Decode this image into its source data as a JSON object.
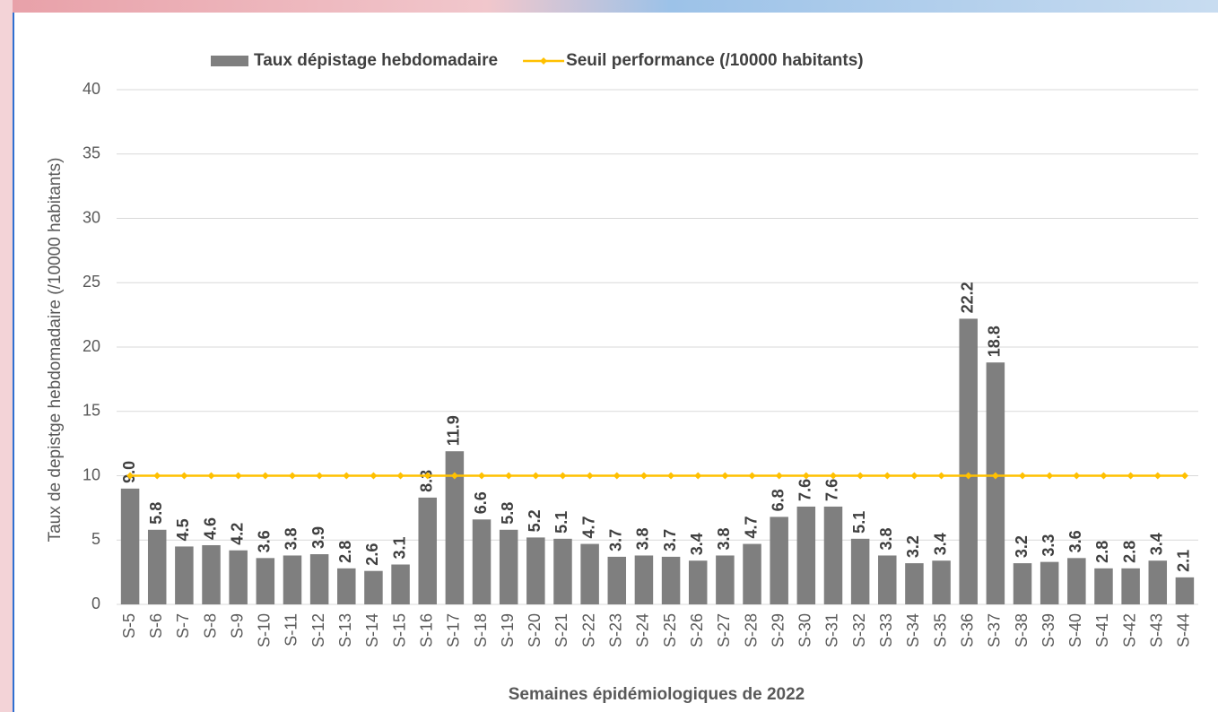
{
  "chart_data": {
    "type": "bar",
    "x_label": "Semaines épidémiologiques de 2022",
    "y_label": "Taux de depistge hebdomadaire (/10000 habitants)",
    "categories": [
      "S-5",
      "S-6",
      "S-7",
      "S-8",
      "S-9",
      "S-10",
      "S-11",
      "S-12",
      "S-13",
      "S-14",
      "S-15",
      "S-16",
      "S-17",
      "S-18",
      "S-19",
      "S-20",
      "S-21",
      "S-22",
      "S-23",
      "S-24",
      "S-25",
      "S-26",
      "S-27",
      "S-28",
      "S-29",
      "S-30",
      "S-31",
      "S-32",
      "S-33",
      "S-34",
      "S-35",
      "S-36",
      "S-37",
      "S-38",
      "S-39",
      "S-40",
      "S-41",
      "S-42",
      "S-43",
      "S-44"
    ],
    "series": [
      {
        "name": "Taux dépistage hebdomadaire",
        "type": "bar",
        "color": "#7f7f7f",
        "values": [
          9.0,
          5.8,
          4.5,
          4.6,
          4.2,
          3.6,
          3.8,
          3.9,
          2.8,
          2.6,
          3.1,
          8.3,
          11.9,
          6.6,
          5.8,
          5.2,
          5.1,
          4.7,
          3.7,
          3.8,
          3.7,
          3.4,
          3.8,
          4.7,
          6.8,
          7.6,
          7.6,
          5.1,
          3.8,
          3.2,
          3.4,
          22.2,
          18.8,
          3.2,
          3.3,
          3.6,
          2.8,
          2.8,
          3.4,
          2.1
        ],
        "value_labels": [
          "9.0",
          "5.8",
          "4.5",
          "4.6",
          "4.2",
          "3.6",
          "3.8",
          "3.9",
          "2.8",
          "2.6",
          "3.1",
          "8.3",
          "11.9",
          "6.6",
          "5.8",
          "5.2",
          "5.1",
          "4.7",
          "3.7",
          "3.8",
          "3.7",
          "3.4",
          "3.8",
          "4.7",
          "6.8",
          "7.6",
          "7.6",
          "5.1",
          "3.8",
          "3.2",
          "3.4",
          "22.2",
          "18.8",
          "3.2",
          "3.3",
          "3.6",
          "2.8",
          "2.8",
          "3.4",
          "2.1"
        ]
      },
      {
        "name": "Seuil performance (/10000 habitants)",
        "type": "line",
        "color": "#ffc000",
        "values": [
          10,
          10,
          10,
          10,
          10,
          10,
          10,
          10,
          10,
          10,
          10,
          10,
          10,
          10,
          10,
          10,
          10,
          10,
          10,
          10,
          10,
          10,
          10,
          10,
          10,
          10,
          10,
          10,
          10,
          10,
          10,
          10,
          10,
          10,
          10,
          10,
          10,
          10,
          10,
          10
        ]
      }
    ],
    "ylim": [
      0,
      40
    ],
    "yticks": [
      0,
      5,
      10,
      15,
      20,
      25,
      30,
      35,
      40
    ],
    "grid": true
  }
}
